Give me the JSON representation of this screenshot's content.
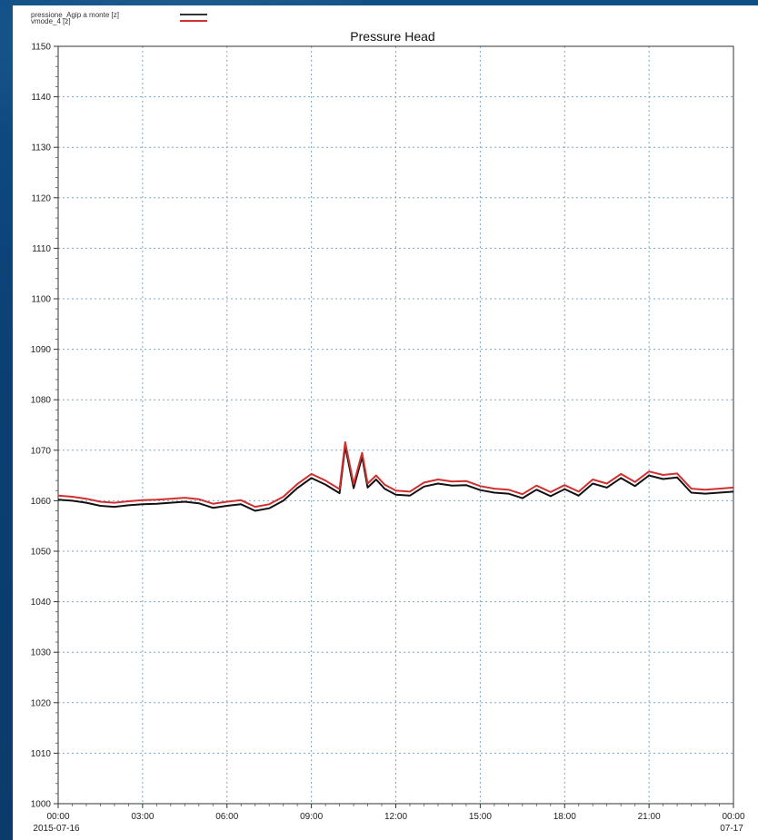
{
  "chart_data": {
    "type": "line",
    "title": "Pressure Head",
    "xlabel": "",
    "ylabel": "",
    "grid": true,
    "legend": {
      "placement": "top-left",
      "entries": [
        {
          "label": "pressione_Agip a monte [z]",
          "color": "#333333"
        },
        {
          "label": "vmode_4 [z]",
          "color": "#d03030"
        }
      ]
    },
    "ylim": [
      1000,
      1150
    ],
    "yticks": [
      1000,
      1010,
      1020,
      1030,
      1040,
      1050,
      1060,
      1070,
      1080,
      1090,
      1100,
      1110,
      1120,
      1130,
      1140,
      1150
    ],
    "xlim_hours": [
      0,
      24
    ],
    "xticks": [
      {
        "h": 0,
        "label": "00:00",
        "sub": "2015-07-16"
      },
      {
        "h": 3,
        "label": "03:00",
        "sub": ""
      },
      {
        "h": 6,
        "label": "06:00",
        "sub": ""
      },
      {
        "h": 9,
        "label": "09:00",
        "sub": ""
      },
      {
        "h": 12,
        "label": "12:00",
        "sub": ""
      },
      {
        "h": 15,
        "label": "15:00",
        "sub": ""
      },
      {
        "h": 18,
        "label": "18:00",
        "sub": ""
      },
      {
        "h": 21,
        "label": "21:00",
        "sub": ""
      },
      {
        "h": 24,
        "label": "00:00",
        "sub": "07-17"
      }
    ],
    "series": [
      {
        "name": "pressione_Agip a monte",
        "color": "#111111",
        "x": [
          0,
          0.5,
          1,
          1.5,
          2,
          2.5,
          3,
          3.5,
          4,
          4.5,
          5,
          5.5,
          6,
          6.5,
          7,
          7.5,
          8,
          8.5,
          9,
          9.5,
          10,
          10.2,
          10.5,
          10.8,
          11,
          11.3,
          11.6,
          12,
          12.5,
          13,
          13.5,
          14,
          14.5,
          15,
          15.5,
          16,
          16.5,
          17,
          17.5,
          18,
          18.5,
          19,
          19.5,
          20,
          20.5,
          21,
          21.5,
          22,
          22.5,
          23,
          23.5,
          24
        ],
        "y": [
          1060.2,
          1060.0,
          1059.6,
          1059.0,
          1058.8,
          1059.1,
          1059.3,
          1059.4,
          1059.6,
          1059.8,
          1059.5,
          1058.6,
          1059.0,
          1059.3,
          1058.0,
          1058.5,
          1060.0,
          1062.5,
          1064.5,
          1063.2,
          1061.5,
          1070.8,
          1062.5,
          1068.7,
          1062.6,
          1064.2,
          1062.4,
          1061.2,
          1061.0,
          1062.8,
          1063.4,
          1063.0,
          1063.1,
          1062.1,
          1061.6,
          1061.4,
          1060.5,
          1062.2,
          1060.9,
          1062.3,
          1061.0,
          1063.4,
          1062.6,
          1064.5,
          1062.9,
          1065.0,
          1064.3,
          1064.6,
          1061.6,
          1061.4,
          1061.6,
          1061.8
        ]
      },
      {
        "name": "vmode_4",
        "color": "#d03030",
        "x": [
          0,
          0.5,
          1,
          1.5,
          2,
          2.5,
          3,
          3.5,
          4,
          4.5,
          5,
          5.5,
          6,
          6.5,
          7,
          7.5,
          8,
          8.5,
          9,
          9.5,
          10,
          10.2,
          10.5,
          10.8,
          11,
          11.3,
          11.6,
          12,
          12.5,
          13,
          13.5,
          14,
          14.5,
          15,
          15.5,
          16,
          16.5,
          17,
          17.5,
          18,
          18.5,
          19,
          19.5,
          20,
          20.5,
          21,
          21.5,
          22,
          22.5,
          23,
          23.5,
          24
        ],
        "y": [
          1061.0,
          1060.8,
          1060.4,
          1059.8,
          1059.6,
          1059.9,
          1060.1,
          1060.2,
          1060.4,
          1060.6,
          1060.3,
          1059.4,
          1059.8,
          1060.1,
          1058.8,
          1059.3,
          1060.8,
          1063.3,
          1065.3,
          1064.0,
          1062.3,
          1071.6,
          1063.3,
          1069.5,
          1063.4,
          1065.0,
          1063.2,
          1062.0,
          1061.8,
          1063.6,
          1064.2,
          1063.8,
          1063.9,
          1062.9,
          1062.4,
          1062.2,
          1061.3,
          1063.0,
          1061.7,
          1063.1,
          1061.8,
          1064.2,
          1063.4,
          1065.3,
          1063.7,
          1065.8,
          1065.1,
          1065.4,
          1062.4,
          1062.2,
          1062.4,
          1062.6
        ]
      }
    ]
  }
}
